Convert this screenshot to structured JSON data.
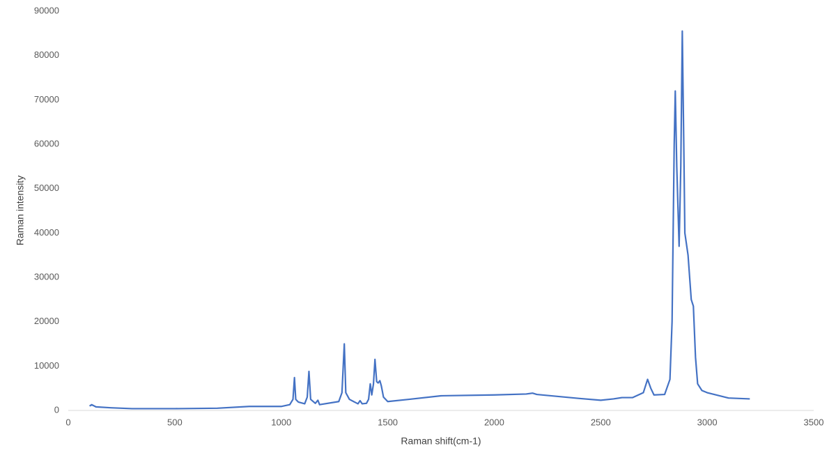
{
  "chart_data": {
    "type": "line",
    "xlabel": "Raman shift(cm-1)",
    "ylabel": "Raman intensity",
    "x": [
      100,
      110,
      130,
      200,
      300,
      500,
      700,
      850,
      1000,
      1040,
      1055,
      1062,
      1068,
      1080,
      1110,
      1122,
      1130,
      1138,
      1160,
      1172,
      1180,
      1270,
      1285,
      1296,
      1303,
      1320,
      1360,
      1370,
      1380,
      1400,
      1410,
      1418,
      1425,
      1433,
      1440,
      1448,
      1455,
      1463,
      1470,
      1480,
      1500,
      1600,
      1750,
      2000,
      2150,
      2180,
      2200,
      2400,
      2500,
      2560,
      2600,
      2650,
      2700,
      2720,
      2735,
      2750,
      2800,
      2825,
      2835,
      2845,
      2850,
      2857,
      2868,
      2876,
      2883,
      2890,
      2895,
      2910,
      2925,
      2935,
      2945,
      2955,
      2975,
      3000,
      3100,
      3200
    ],
    "values": [
      1000,
      1300,
      800,
      600,
      400,
      400,
      500,
      900,
      900,
      1300,
      2500,
      7400,
      2500,
      1900,
      1500,
      3000,
      8800,
      2500,
      1600,
      2300,
      1300,
      2000,
      4000,
      15000,
      4000,
      2500,
      1500,
      2200,
      1500,
      1600,
      2500,
      6000,
      3500,
      6000,
      11500,
      6500,
      6200,
      6700,
      5500,
      3000,
      2000,
      2500,
      3300,
      3500,
      3700,
      3900,
      3600,
      2700,
      2300,
      2600,
      2900,
      2900,
      4000,
      7000,
      5000,
      3500,
      3600,
      7000,
      20000,
      60000,
      72000,
      55000,
      37000,
      55000,
      85500,
      60000,
      40000,
      35000,
      25000,
      23500,
      12000,
      6000,
      4500,
      4000,
      2800,
      2600
    ],
    "color": "#4472c4",
    "xlim": [
      0,
      3500
    ],
    "xticks": [
      0,
      500,
      1000,
      1500,
      2000,
      2500,
      3000,
      3500
    ],
    "ylim": [
      0,
      90000
    ],
    "yticks": [
      0,
      10000,
      20000,
      30000,
      40000,
      50000,
      60000,
      70000,
      80000,
      90000
    ],
    "grid": false
  }
}
